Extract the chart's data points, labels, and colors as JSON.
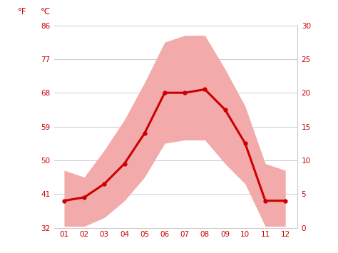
{
  "months": [
    1,
    2,
    3,
    4,
    5,
    6,
    7,
    8,
    9,
    10,
    11,
    12
  ],
  "month_labels": [
    "01",
    "02",
    "03",
    "04",
    "05",
    "06",
    "07",
    "08",
    "09",
    "10",
    "11",
    "12"
  ],
  "mean_temp_c": [
    4.0,
    4.5,
    6.5,
    9.5,
    14.0,
    20.0,
    20.0,
    20.5,
    17.5,
    12.5,
    4.0,
    4.0
  ],
  "max_temp_c": [
    8.5,
    7.5,
    11.5,
    16.0,
    21.5,
    27.5,
    28.5,
    28.5,
    23.5,
    18.0,
    9.5,
    8.5
  ],
  "min_temp_c": [
    0.2,
    0.2,
    1.5,
    4.0,
    7.5,
    12.5,
    13.0,
    13.0,
    9.5,
    6.5,
    0.2,
    0.2
  ],
  "line_color": "#cc0000",
  "fill_color": "#f2aaaa",
  "background_color": "#ffffff",
  "grid_color": "#cccccc",
  "label_color": "#cc0000",
  "ylim_c": [
    0,
    30
  ],
  "yticks_c": [
    0,
    5,
    10,
    15,
    20,
    25,
    30
  ],
  "yticks_f": [
    32,
    41,
    50,
    59,
    68,
    77,
    86
  ],
  "ylabel_left": "°F",
  "ylabel_right": "°C",
  "figsize": [
    4.74,
    3.55
  ],
  "dpi": 100
}
